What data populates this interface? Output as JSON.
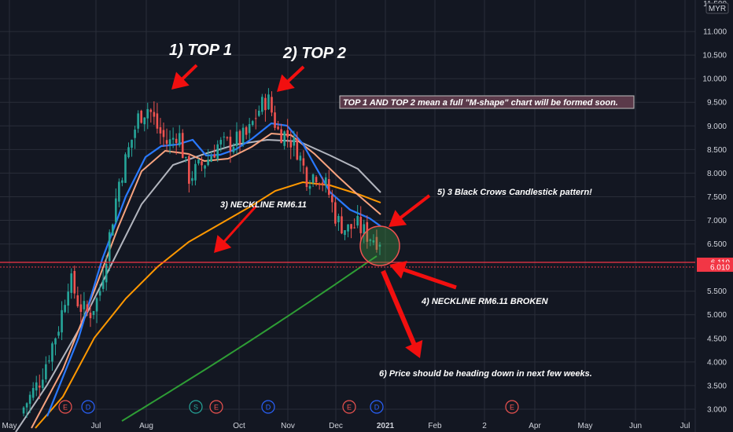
{
  "chart_data": {
    "type": "candlestick",
    "currency_label": "MYR",
    "y_ticks": [
      "11.000",
      "10.500",
      "10.000",
      "9.500",
      "9.000",
      "8.500",
      "8.000",
      "7.500",
      "7.000",
      "6.500",
      "5.500",
      "5.000",
      "4.500",
      "4.000",
      "3.500",
      "3.000"
    ],
    "y_tick_values": [
      11.0,
      10.5,
      10.0,
      9.5,
      9.0,
      8.5,
      8.0,
      7.5,
      7.0,
      6.5,
      5.5,
      5.0,
      4.5,
      4.0,
      3.5,
      3.0
    ],
    "y_top_partial": "11.500",
    "ylim": [
      2.75,
      11.6
    ],
    "x_labels": [
      "May",
      "Jul",
      "Aug",
      "Oct",
      "Nov",
      "Dec",
      "2021",
      "Feb",
      "2",
      "Apr",
      "May",
      "Jun",
      "Jul"
    ],
    "price_labels": [
      {
        "text": "6.110",
        "value": 6.11,
        "color": "#f23645"
      },
      {
        "text": "6.010",
        "value": 6.01,
        "color": "#f23645"
      }
    ],
    "horizontal_line": 6.11,
    "candles_summary": {
      "x_days": [
        0,
        10,
        20,
        25,
        30,
        35,
        40,
        45,
        50,
        55,
        60,
        65,
        70,
        75,
        80,
        85,
        90,
        95,
        100,
        105,
        110,
        115,
        120,
        125,
        130,
        135,
        140,
        145,
        150,
        155,
        160,
        165,
        170,
        175,
        180,
        185,
        190,
        195,
        200,
        205,
        210,
        215,
        220,
        225,
        230,
        235,
        240,
        245,
        250
      ],
      "closes": [
        2.9,
        3.6,
        4.8,
        5.8,
        5.2,
        5.0,
        5.4,
        6.6,
        7.8,
        8.5,
        9.2,
        9.4,
        8.9,
        8.6,
        8.9,
        7.9,
        8.1,
        8.3,
        8.6,
        8.6,
        8.7,
        8.8,
        9.3,
        9.6,
        8.9,
        8.8,
        8.5,
        7.9,
        8.0,
        7.7,
        7.0,
        6.8,
        6.9,
        6.7,
        6.6,
        6.6,
        6.4,
        6.2,
        6.0,
        6.0,
        6.0,
        6.0,
        6.0,
        6.0,
        6.0,
        6.0,
        6.0,
        6.0,
        6.0
      ]
    },
    "series": [
      {
        "name": "",
        "color": "#2962ff",
        "values": []
      },
      {
        "name": "",
        "color": "#f7a37f",
        "values": []
      },
      {
        "name": "",
        "color": "#b2b5be",
        "values": []
      },
      {
        "name": "",
        "color": "#ff9800",
        "values": []
      },
      {
        "name": "",
        "color": "#26a69a",
        "values": []
      }
    ],
    "annotations": [
      {
        "text": "1) TOP 1"
      },
      {
        "text": "2) TOP 2"
      },
      {
        "text": "TOP 1 AND TOP 2 mean a full \"M-shape\" chart will be formed soon."
      },
      {
        "text": "3) NECKLINE RM6.11"
      },
      {
        "text": "5) 3 Black Crows Candlestick pattern!"
      },
      {
        "text": "4) NECKLINE RM6.11 BROKEN"
      },
      {
        "text": "6) Price should be heading down in next few weeks."
      }
    ],
    "event_markers": [
      "E",
      "D",
      "S",
      "E",
      "D",
      "E",
      "D",
      "E"
    ],
    "colors": {
      "up": "#26a69a",
      "down": "#ef5350",
      "grid": "#2a2e39",
      "bg": "#131722"
    }
  }
}
